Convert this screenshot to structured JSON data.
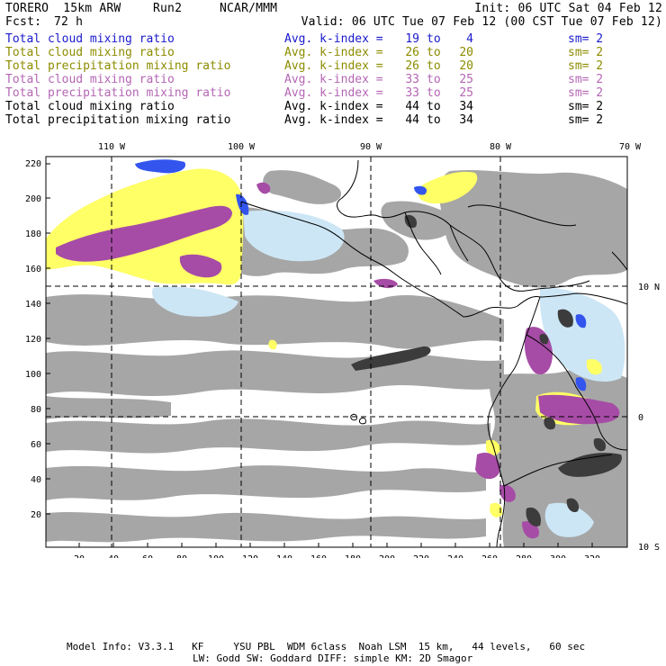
{
  "header": {
    "model": "TORERO  15km ARW",
    "run": "Run2",
    "org": "NCAR/MMM",
    "init": "Init: 06 UTC Sat 04 Feb 12",
    "fcst_label": "Fcst:",
    "fcst_value": "72 h",
    "valid": "Valid: 06 UTC Tue 07 Feb 12 (00 CST Tue 07 Feb 12)"
  },
  "legend": [
    {
      "field": "Total cloud mixing ratio",
      "avg": "Avg. k-index =",
      "hi": "19",
      "to": "to",
      "lo": "4",
      "sm": "sm= 2",
      "color": "#1a1acc"
    },
    {
      "field": "Total cloud mixing ratio",
      "avg": "Avg. k-index =",
      "hi": "26",
      "to": "to",
      "lo": "20",
      "sm": "sm= 2",
      "color": "#8c8c00"
    },
    {
      "field": "Total precipitation mixing ratio",
      "avg": "Avg. k-index =",
      "hi": "26",
      "to": "to",
      "lo": "20",
      "sm": "sm= 2",
      "color": "#8c8c00"
    },
    {
      "field": "Total cloud mixing ratio",
      "avg": "Avg. k-index =",
      "hi": "33",
      "to": "to",
      "lo": "25",
      "sm": "sm= 2",
      "color": "#b466b4"
    },
    {
      "field": "Total precipitation mixing ratio",
      "avg": "Avg. k-index =",
      "hi": "33",
      "to": "to",
      "lo": "25",
      "sm": "sm= 2",
      "color": "#b466b4"
    },
    {
      "field": "Total cloud mixing ratio",
      "avg": "Avg. k-index =",
      "hi": "44",
      "to": "to",
      "lo": "34",
      "sm": "sm= 2",
      "color": "#000000"
    },
    {
      "field": "Total precipitation mixing ratio",
      "avg": "Avg. k-index =",
      "hi": "44",
      "to": "to",
      "lo": "34",
      "sm": "sm= 2",
      "color": "#000000"
    }
  ],
  "map": {
    "lon_labels": [
      "110 W",
      "100 W",
      "90 W",
      "80 W",
      "70 W"
    ],
    "lat_labels": [
      "10 N",
      "0",
      "10 S"
    ],
    "y_ticks": [
      "220",
      "200",
      "180",
      "160",
      "140",
      "120",
      "100",
      "80",
      "60",
      "40",
      "20"
    ],
    "x_ticks": [
      "20",
      "40",
      "60",
      "80",
      "100",
      "120",
      "140",
      "160",
      "180",
      "200",
      "220",
      "240",
      "260",
      "280",
      "300",
      "320"
    ],
    "colors": {
      "gray_cloud": "#a6a6a6",
      "dark_cloud": "#3c3c3c",
      "purple_precip": "#a64ca6",
      "yellow_cloud": "#ffff66",
      "light_blue_cloud": "#cce6f5",
      "blue_cloud": "#3355ee",
      "coastline": "#000000",
      "grid": "#000000"
    }
  },
  "footer": {
    "line1": "Model Info: V3.3.1   KF     YSU PBL  WDM 6class  Noah LSM  15 km,   44 levels,   60 sec",
    "line2": "LW: Godd SW: Goddard DIFF: simple KM: 2D Smagor"
  }
}
